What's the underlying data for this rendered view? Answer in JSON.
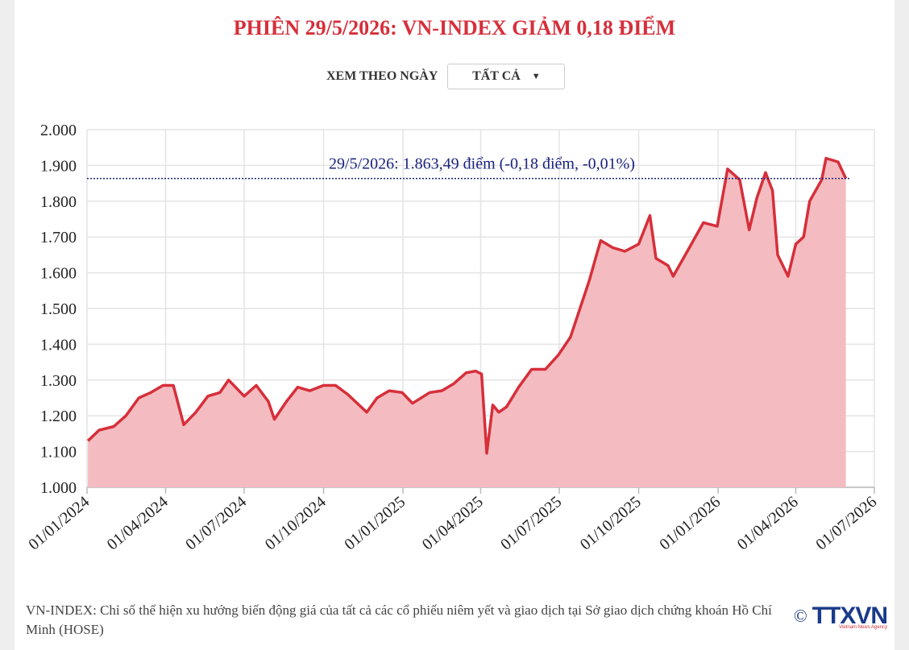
{
  "chart_data": {
    "type": "area",
    "title": "PHIÊN 29/5/2026: VN-INDEX GIẢM 0,18 ĐIỂM",
    "x": [
      "2024-01-02",
      "2024-01-15",
      "2024-02-01",
      "2024-02-15",
      "2024-03-01",
      "2024-03-15",
      "2024-03-29",
      "2024-04-10",
      "2024-04-22",
      "2024-05-06",
      "2024-05-20",
      "2024-06-03",
      "2024-06-13",
      "2024-07-01",
      "2024-07-15",
      "2024-07-29",
      "2024-08-05",
      "2024-08-19",
      "2024-09-01",
      "2024-09-15",
      "2024-10-01",
      "2024-10-15",
      "2024-10-29",
      "2024-11-20",
      "2024-12-02",
      "2024-12-16",
      "2024-12-31",
      "2025-01-12",
      "2025-02-01",
      "2025-02-15",
      "2025-03-01",
      "2025-03-15",
      "2025-03-26",
      "2025-04-02",
      "2025-04-08",
      "2025-04-15",
      "2025-04-22",
      "2025-05-01",
      "2025-05-15",
      "2025-05-30",
      "2025-06-15",
      "2025-06-30",
      "2025-07-14",
      "2025-07-25",
      "2025-08-05",
      "2025-08-12",
      "2025-08-18",
      "2025-09-01",
      "2025-09-15",
      "2025-10-01",
      "2025-10-14",
      "2025-10-21",
      "2025-11-04",
      "2025-11-10",
      "2025-12-01",
      "2025-12-15",
      "2025-12-31",
      "2026-01-12",
      "2026-01-26",
      "2026-02-06",
      "2026-02-15",
      "2026-02-25",
      "2026-03-05",
      "2026-03-11",
      "2026-03-23",
      "2026-04-01",
      "2026-04-10",
      "2026-04-17",
      "2026-05-01",
      "2026-05-06",
      "2026-05-20",
      "2026-05-29"
    ],
    "series": [
      {
        "name": "VN-INDEX",
        "color": "#d62f3a",
        "fill": "#f4bcc0",
        "values": [
          1130,
          1160,
          1170,
          1200,
          1250,
          1265,
          1285,
          1285,
          1175,
          1210,
          1255,
          1265,
          1300,
          1255,
          1285,
          1240,
          1190,
          1240,
          1280,
          1270,
          1285,
          1285,
          1260,
          1210,
          1250,
          1270,
          1265,
          1235,
          1265,
          1270,
          1290,
          1320,
          1325,
          1317,
          1095,
          1230,
          1210,
          1225,
          1280,
          1330,
          1330,
          1370,
          1420,
          1500,
          1580,
          1640,
          1690,
          1670,
          1660,
          1680,
          1760,
          1640,
          1620,
          1590,
          1680,
          1740,
          1730,
          1890,
          1860,
          1720,
          1810,
          1880,
          1830,
          1650,
          1590,
          1680,
          1700,
          1800,
          1860,
          1920,
          1910,
          1863.49
        ]
      }
    ],
    "xlim": [
      "2024-01-01",
      "2026-07-01"
    ],
    "xticks": [
      {
        "value": "2024-01-01",
        "label": "01/01/2024"
      },
      {
        "value": "2024-04-01",
        "label": "01/04/2024"
      },
      {
        "value": "2024-07-01",
        "label": "01/07/2024"
      },
      {
        "value": "2024-10-01",
        "label": "01/10/2024"
      },
      {
        "value": "2025-01-01",
        "label": "01/01/2025"
      },
      {
        "value": "2025-04-01",
        "label": "01/04/2025"
      },
      {
        "value": "2025-07-01",
        "label": "01/07/2025"
      },
      {
        "value": "2025-10-01",
        "label": "01/10/2025"
      },
      {
        "value": "2026-01-01",
        "label": "01/01/2026"
      },
      {
        "value": "2026-04-01",
        "label": "01/04/2026"
      },
      {
        "value": "2026-07-01",
        "label": "01/07/2026"
      }
    ],
    "ylim": [
      1000,
      2000
    ],
    "yticks": [
      {
        "value": 1000,
        "label": "1.000"
      },
      {
        "value": 1100,
        "label": "1.100"
      },
      {
        "value": 1200,
        "label": "1.200"
      },
      {
        "value": 1300,
        "label": "1.300"
      },
      {
        "value": 1400,
        "label": "1.400"
      },
      {
        "value": 1500,
        "label": "1.500"
      },
      {
        "value": 1600,
        "label": "1.600"
      },
      {
        "value": 1700,
        "label": "1.700"
      },
      {
        "value": 1800,
        "label": "1.800"
      },
      {
        "value": 1900,
        "label": "1.900"
      },
      {
        "value": 2000,
        "label": "2.000"
      }
    ],
    "grid": true,
    "reference_line": {
      "value": 1863.49,
      "label": "29/5/2026: 1.863,49 điểm (-0,18 điểm, -0,01%)",
      "color": "#1a237e"
    }
  },
  "controls": {
    "label": "XEM THEO NGÀY",
    "select": "TẤT CẢ"
  },
  "footer": {
    "note": "VN-INDEX: Chỉ số thể hiện xu hướng biến động giá của tất cả các cổ phiếu niêm yết và giao dịch tại Sở giao dịch chứng khoán Hồ Chí Minh (HOSE)",
    "copyright": "©",
    "logo": "TTXVN",
    "logo_sub": "Vietnam News Agency"
  }
}
